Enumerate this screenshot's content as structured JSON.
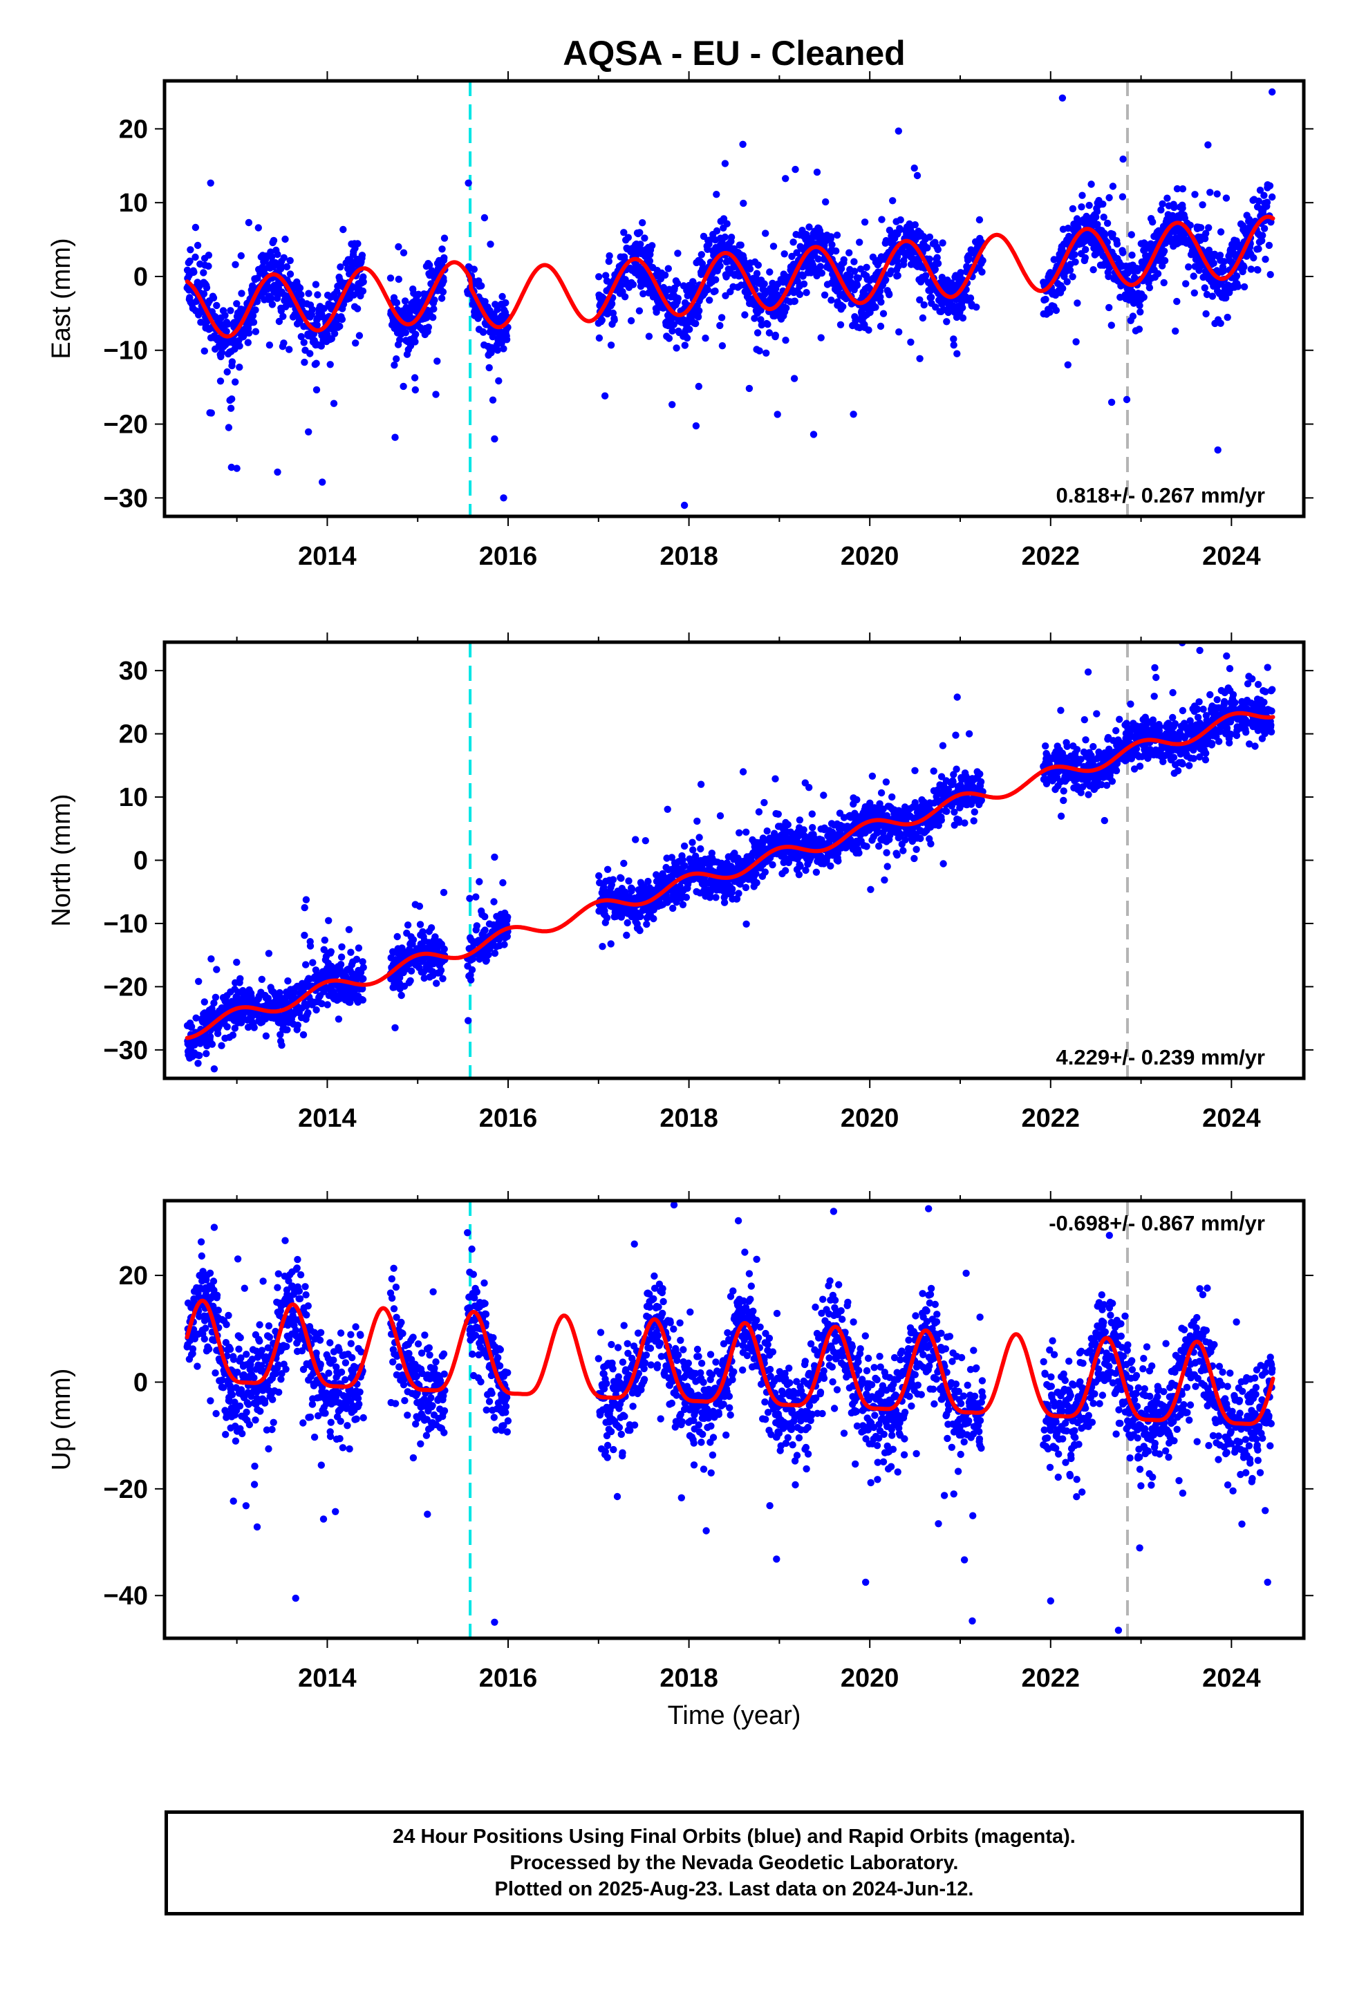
{
  "title": "AQSA  - EU - Cleaned",
  "x_axis_title": "Time (year)",
  "footer": {
    "line1": "24 Hour Positions Using Final Orbits (blue) and Rapid Orbits (magenta).",
    "line2": "Processed by the Nevada Geodetic Laboratory.",
    "line3": "Plotted on 2025-Aug-23. Last data on 2024-Jun-12."
  },
  "colors": {
    "points": "#0000ff",
    "model": "#ff0000",
    "equipment_change_line": "#00e5e5",
    "secondary_event_line": "#b4b4b4",
    "frame": "#000000"
  },
  "chart_data": [
    {
      "type": "scatter",
      "component": "east",
      "ylabel": "East (mm)",
      "xlabel": "",
      "xlim": [
        2012.2,
        2024.8
      ],
      "ylim": [
        -32.5,
        26.5
      ],
      "x_ticks": [
        2014,
        2016,
        2018,
        2020,
        2022,
        2024
      ],
      "y_ticks": [
        -30,
        -20,
        -10,
        0,
        10,
        20
      ],
      "velocity_label": "0.818+/- 0.267 mm/yr",
      "velocity_label_position": "bottom-right",
      "rate_mm_per_yr": 0.818,
      "trend_value_at_2018": 0.05,
      "offsets": [
        {
          "after": 2015.58,
          "value": -1.2
        }
      ],
      "annual_amplitude": 4.0,
      "annual_phase_peak_fraction": 0.4,
      "semiannual_amplitude": 0.0,
      "scatter_sigma": 2.0,
      "outlier_sigma": 8.0,
      "outlier_bias": -1.0,
      "equipment_change_epoch": 2015.58,
      "secondary_event_epoch": 2022.85,
      "data_segments": [
        [
          2012.45,
          2014.4
        ],
        [
          2014.7,
          2015.3
        ],
        [
          2015.55,
          2016.0
        ],
        [
          2017.0,
          2021.25
        ],
        [
          2021.92,
          2024.45
        ]
      ],
      "notable_points": [
        [
          2024.45,
          25.0
        ],
        [
          2013.0,
          -26.0
        ],
        [
          2013.45,
          -26.5
        ],
        [
          2014.75,
          -21.8
        ],
        [
          2015.85,
          -22.0
        ],
        [
          2015.95,
          -30.0
        ],
        [
          2017.95,
          -31.0
        ],
        [
          2018.4,
          15.3
        ],
        [
          2023.85,
          -23.5
        ],
        [
          2022.45,
          12.5
        ]
      ]
    },
    {
      "type": "scatter",
      "component": "north",
      "ylabel": "North (mm)",
      "xlabel": "",
      "xlim": [
        2012.2,
        2024.8
      ],
      "ylim": [
        -34.5,
        34.5
      ],
      "x_ticks": [
        2014,
        2016,
        2018,
        2020,
        2022,
        2024
      ],
      "y_ticks": [
        -30,
        -20,
        -10,
        0,
        10,
        20,
        30
      ],
      "velocity_label": "4.229+/- 0.239 mm/yr",
      "velocity_label_position": "bottom-right",
      "rate_mm_per_yr": 4.229,
      "trend_value_at_2018": -3.5,
      "offsets": [],
      "annual_amplitude": 1.2,
      "annual_phase_peak_fraction": 0.0,
      "semiannual_amplitude": 0.0,
      "scatter_sigma": 1.8,
      "outlier_sigma": 5.0,
      "outlier_bias": 3.0,
      "equipment_change_epoch": 2015.58,
      "secondary_event_epoch": 2022.85,
      "data_segments": [
        [
          2012.45,
          2014.4
        ],
        [
          2014.7,
          2015.3
        ],
        [
          2015.55,
          2016.0
        ],
        [
          2017.0,
          2021.25
        ],
        [
          2021.92,
          2024.45
        ]
      ],
      "notable_points": [
        [
          2023.65,
          33.2
        ],
        [
          2024.4,
          30.5
        ],
        [
          2018.6,
          14.0
        ],
        [
          2015.85,
          0.5
        ],
        [
          2014.75,
          -26.5
        ],
        [
          2012.75,
          -33.0
        ],
        [
          2013.75,
          -7.5
        ],
        [
          2021.1,
          20.0
        ]
      ]
    },
    {
      "type": "scatter",
      "component": "up",
      "ylabel": "Up (mm)",
      "xlabel": "Time (year)",
      "xlim": [
        2012.2,
        2024.8
      ],
      "ylim": [
        -48.0,
        34.0
      ],
      "x_ticks": [
        2014,
        2016,
        2018,
        2020,
        2022,
        2024
      ],
      "y_ticks": [
        -40,
        -20,
        0,
        20
      ],
      "velocity_label": "-0.698+/- 0.867 mm/yr",
      "velocity_label_position": "top-right",
      "rate_mm_per_yr": -0.698,
      "trend_value_at_2018": 2.0,
      "offsets": [],
      "annual_amplitude": 7.5,
      "annual_phase_peak_fraction": 0.62,
      "semiannual_amplitude": 2.0,
      "scatter_sigma": 4.5,
      "outlier_sigma": 12.0,
      "outlier_bias": -3.0,
      "equipment_change_epoch": 2015.58,
      "secondary_event_epoch": 2022.85,
      "data_segments": [
        [
          2012.45,
          2014.4
        ],
        [
          2014.7,
          2015.3
        ],
        [
          2015.55,
          2016.0
        ],
        [
          2017.0,
          2021.25
        ],
        [
          2021.92,
          2024.45
        ]
      ],
      "notable_points": [
        [
          2012.75,
          29.0
        ],
        [
          2015.55,
          28.0
        ],
        [
          2019.6,
          32.0
        ],
        [
          2020.65,
          32.5
        ],
        [
          2015.85,
          -45.0
        ],
        [
          2013.65,
          -40.5
        ],
        [
          2022.0,
          -41.0
        ],
        [
          2022.75,
          -46.5
        ],
        [
          2024.4,
          -37.5
        ],
        [
          2022.65,
          27.5
        ]
      ]
    }
  ]
}
